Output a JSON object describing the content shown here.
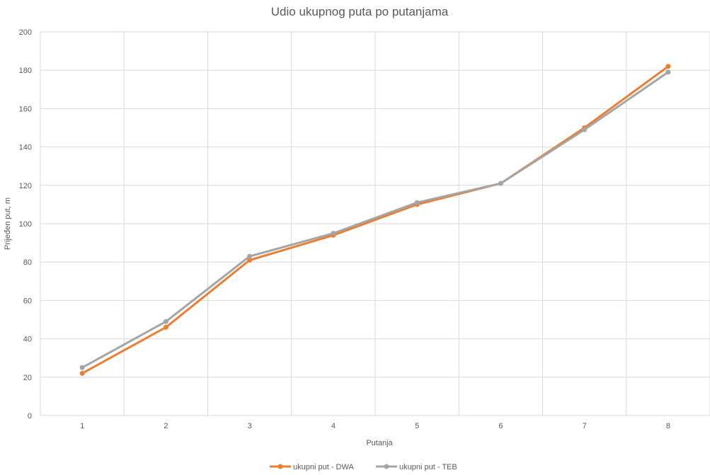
{
  "chart_data": {
    "type": "line",
    "title": "Udio ukupnog puta po putanjama",
    "xlabel": "Putanja",
    "ylabel": "Prijeđen put, m",
    "categories": [
      "1",
      "2",
      "3",
      "4",
      "5",
      "6",
      "7",
      "8"
    ],
    "ylim": [
      0,
      200
    ],
    "yticks": [
      "0",
      "20",
      "40",
      "60",
      "80",
      "100",
      "120",
      "140",
      "160",
      "180",
      "200"
    ],
    "grid": true,
    "legend_position": "bottom",
    "series": [
      {
        "name": "ukupni put - DWA",
        "color": "#ed7d31",
        "values": [
          22,
          46,
          81,
          94,
          110,
          121,
          150,
          182
        ]
      },
      {
        "name": "ukupni put - TEB",
        "color": "#a5a5a5",
        "values": [
          25,
          49,
          83,
          95,
          111,
          121,
          149,
          179
        ]
      }
    ]
  }
}
